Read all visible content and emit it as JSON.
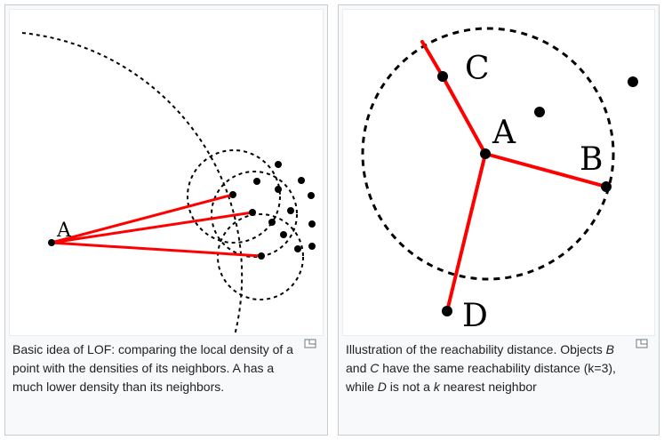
{
  "figures": [
    {
      "caption": "Basic idea of LOF: comparing the local density of a point with the densities of its neighbors. A has a much lower density than its neighbors.",
      "point_label": "A"
    },
    {
      "caption_parts": [
        {
          "text": "Illustration of the reachability distance. Objects "
        },
        {
          "text": "B",
          "italic": true
        },
        {
          "text": " and "
        },
        {
          "text": "C",
          "italic": true
        },
        {
          "text": " have the same reachability distance (k=3), while "
        },
        {
          "text": "D",
          "italic": true
        },
        {
          "text": " is not a "
        },
        {
          "text": "k",
          "italic": true
        },
        {
          "text": " nearest neighbor"
        }
      ],
      "labels": {
        "a": "A",
        "b": "B",
        "c": "C",
        "d": "D"
      }
    }
  ],
  "icons": {
    "enlarge": "magnify-clip-icon"
  },
  "colors": {
    "edge": "#ff0000",
    "point": "#000000",
    "border": "#c8ccd1"
  }
}
